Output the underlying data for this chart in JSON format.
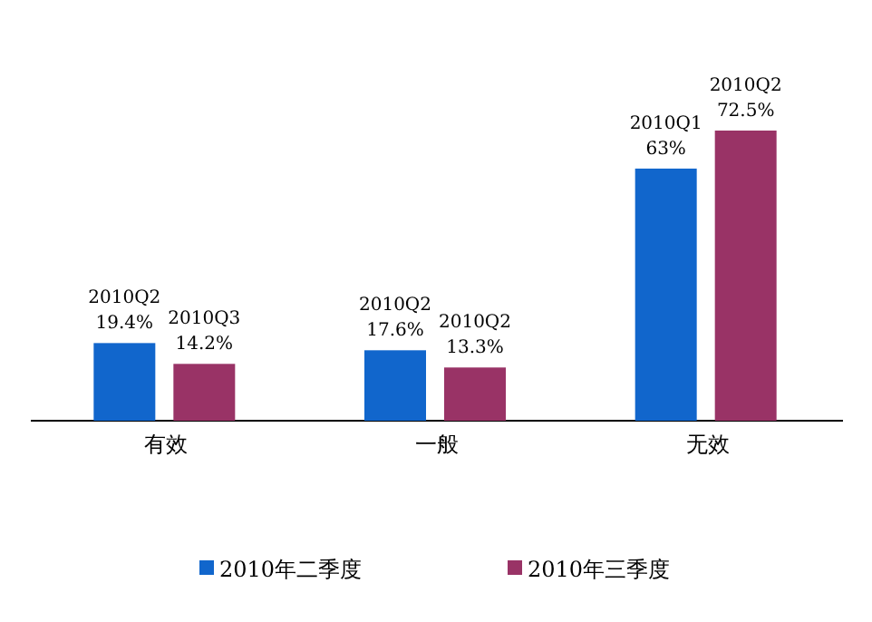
{
  "chart_data": {
    "type": "bar",
    "categories": [
      "有效",
      "一般",
      "无效"
    ],
    "series": [
      {
        "name": "2010年二季度",
        "color": "#1166cc",
        "values": [
          19.4,
          17.6,
          63
        ],
        "value_labels": [
          "2010Q2 19.4%",
          "2010Q2 17.6%",
          "2010Q1 63%"
        ]
      },
      {
        "name": "2010年三季度",
        "color": "#993366",
        "values": [
          14.2,
          13.3,
          72.5
        ],
        "value_labels": [
          "2010Q3 14.2%",
          "2010Q2 13.3%",
          "2010Q2 72.5%"
        ]
      }
    ],
    "legend": "bottom",
    "grid": false
  }
}
